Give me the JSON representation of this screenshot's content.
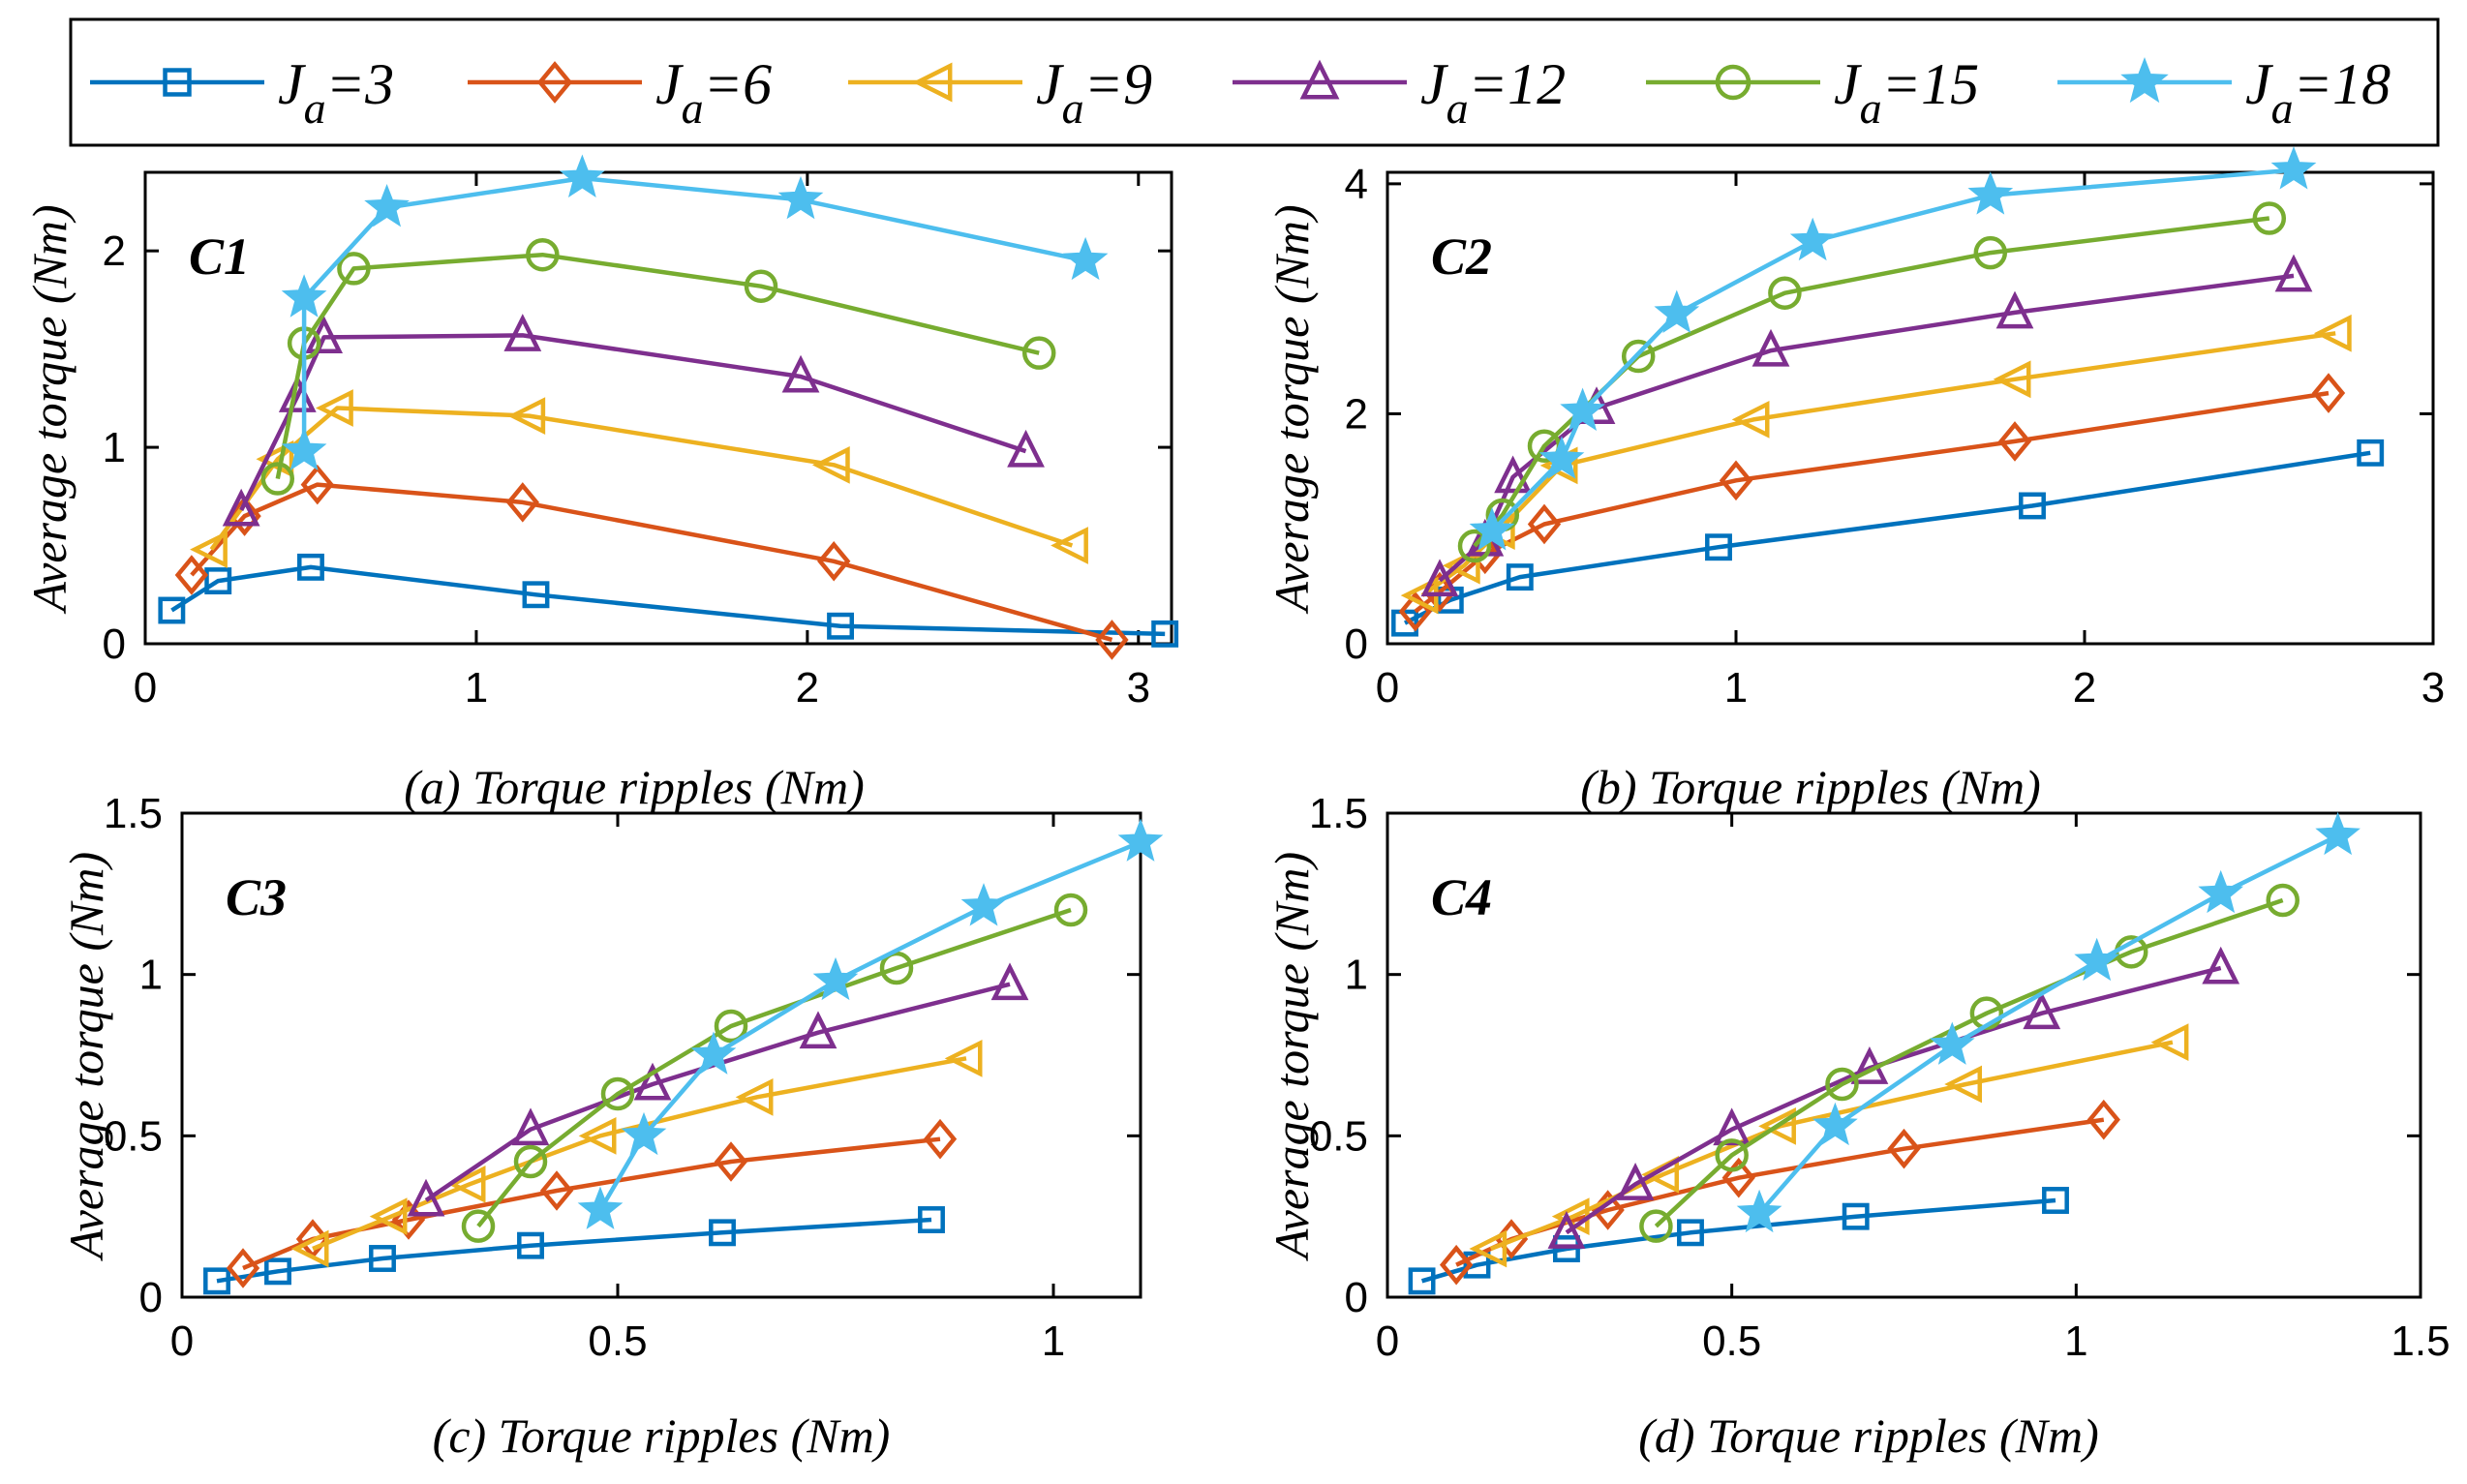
{
  "legend": [
    {
      "name": "J_a=3",
      "label_main": "J",
      "label_sub": "a",
      "label_value": "=3",
      "color": "#0072BD",
      "marker": "square"
    },
    {
      "name": "J_a=6",
      "label_main": "J",
      "label_sub": "a",
      "label_value": "=6",
      "color": "#D95319",
      "marker": "diamond"
    },
    {
      "name": "J_a=9",
      "label_main": "J",
      "label_sub": "a",
      "label_value": "=9",
      "color": "#EDB120",
      "marker": "triangle-left"
    },
    {
      "name": "J_a=12",
      "label_main": "J",
      "label_sub": "a",
      "label_value": "=12",
      "color": "#7E2F8E",
      "marker": "triangle-up"
    },
    {
      "name": "J_a=15",
      "label_main": "J",
      "label_sub": "a",
      "label_value": "=15",
      "color": "#77AC30",
      "marker": "circle"
    },
    {
      "name": "J_a=18",
      "label_main": "J",
      "label_sub": "a",
      "label_value": "=18",
      "color": "#4DBEEE",
      "marker": "star"
    }
  ],
  "chart_data": [
    {
      "type": "line",
      "panel": "a",
      "label": "C1",
      "xlabel": "(a) Torque ripples (Nm)",
      "ylabel": "Average torque (Nm)",
      "xlim": [
        0,
        3.1
      ],
      "ylim": [
        0,
        2.4
      ],
      "xticks": [
        0,
        1,
        2,
        3
      ],
      "yticks": [
        0,
        1,
        2
      ],
      "xtick_labels": [
        "0",
        "1",
        "2",
        "3"
      ],
      "ytick_labels": [
        "0",
        "1",
        "2"
      ],
      "series": [
        {
          "name": "J_a=3",
          "x": [
            0.08,
            0.22,
            0.5,
            1.18,
            2.1,
            3.08
          ],
          "y": [
            0.17,
            0.32,
            0.39,
            0.25,
            0.09,
            0.05
          ]
        },
        {
          "name": "J_a=6",
          "x": [
            0.14,
            0.3,
            0.52,
            1.14,
            2.08,
            2.92
          ],
          "y": [
            0.35,
            0.65,
            0.81,
            0.72,
            0.42,
            0.02
          ]
        },
        {
          "name": "J_a=9",
          "x": [
            0.2,
            0.4,
            0.58,
            1.16,
            2.08,
            2.8
          ],
          "y": [
            0.48,
            0.94,
            1.2,
            1.16,
            0.91,
            0.5
          ]
        },
        {
          "name": "J_a=12",
          "x": [
            0.29,
            0.46,
            0.54,
            1.14,
            1.98,
            2.66
          ],
          "y": [
            0.68,
            1.26,
            1.56,
            1.57,
            1.36,
            0.98
          ]
        },
        {
          "name": "J_a=15",
          "x": [
            0.4,
            0.48,
            0.63,
            1.2,
            1.86,
            2.7
          ],
          "y": [
            0.84,
            1.53,
            1.91,
            1.98,
            1.82,
            1.48
          ]
        },
        {
          "name": "J_a=18",
          "x": [
            0.48,
            0.48,
            0.73,
            1.32,
            1.98,
            2.84
          ],
          "y": [
            0.98,
            1.76,
            2.22,
            2.37,
            2.26,
            1.95
          ]
        }
      ]
    },
    {
      "type": "line",
      "panel": "b",
      "label": "C2",
      "xlabel": "(b) Torque ripples (Nm)",
      "ylabel": "Average torque (Nm)",
      "xlim": [
        0,
        3
      ],
      "ylim": [
        0,
        4.1
      ],
      "xticks": [
        0,
        1,
        2,
        3
      ],
      "yticks": [
        0,
        2,
        4
      ],
      "xtick_labels": [
        "0",
        "1",
        "2",
        "3"
      ],
      "ytick_labels": [
        "0",
        "2",
        "4"
      ],
      "series": [
        {
          "name": "J_a=3",
          "x": [
            0.05,
            0.18,
            0.38,
            0.95,
            1.85,
            2.82
          ],
          "y": [
            0.18,
            0.38,
            0.58,
            0.84,
            1.2,
            1.66
          ]
        },
        {
          "name": "J_a=6",
          "x": [
            0.08,
            0.15,
            0.28,
            0.45,
            1.0,
            1.8,
            2.7
          ],
          "y": [
            0.28,
            0.45,
            0.78,
            1.04,
            1.42,
            1.76,
            2.18
          ]
        },
        {
          "name": "J_a=9",
          "x": [
            0.1,
            0.22,
            0.32,
            0.5,
            1.05,
            1.8,
            2.72
          ],
          "y": [
            0.42,
            0.68,
            0.98,
            1.55,
            1.95,
            2.3,
            2.7
          ]
        },
        {
          "name": "J_a=12",
          "x": [
            0.15,
            0.28,
            0.36,
            0.6,
            1.1,
            1.8,
            2.6
          ],
          "y": [
            0.55,
            0.9,
            1.45,
            2.05,
            2.55,
            2.88,
            3.2
          ]
        },
        {
          "name": "J_a=15",
          "x": [
            0.25,
            0.33,
            0.45,
            0.72,
            1.14,
            1.73,
            2.53
          ],
          "y": [
            0.85,
            1.12,
            1.72,
            2.5,
            3.05,
            3.4,
            3.7
          ]
        },
        {
          "name": "J_a=18",
          "x": [
            0.3,
            0.5,
            0.56,
            0.83,
            1.22,
            1.73,
            2.6
          ],
          "y": [
            0.98,
            1.6,
            2.02,
            2.87,
            3.5,
            3.9,
            4.12
          ]
        }
      ]
    },
    {
      "type": "line",
      "panel": "c",
      "label": "C3",
      "xlabel": "(c) Torque ripples (Nm)",
      "ylabel": "Average torque (Nm)",
      "xlim": [
        0,
        1.1
      ],
      "ylim": [
        0,
        1.5
      ],
      "xticks": [
        0,
        0.5,
        1
      ],
      "yticks": [
        0,
        0.5,
        1,
        1.5
      ],
      "xtick_labels": [
        "0",
        "0.5",
        "1"
      ],
      "ytick_labels": [
        "0",
        "0.5",
        "1",
        "1.5"
      ],
      "series": [
        {
          "name": "J_a=3",
          "x": [
            0.04,
            0.11,
            0.23,
            0.4,
            0.62,
            0.86
          ],
          "y": [
            0.05,
            0.08,
            0.12,
            0.16,
            0.2,
            0.24
          ]
        },
        {
          "name": "J_a=6",
          "x": [
            0.07,
            0.15,
            0.26,
            0.43,
            0.63,
            0.87
          ],
          "y": [
            0.09,
            0.18,
            0.24,
            0.33,
            0.42,
            0.49
          ]
        },
        {
          "name": "J_a=9",
          "x": [
            0.15,
            0.24,
            0.33,
            0.48,
            0.66,
            0.9
          ],
          "y": [
            0.15,
            0.25,
            0.35,
            0.5,
            0.62,
            0.74
          ]
        },
        {
          "name": "J_a=12",
          "x": [
            0.28,
            0.4,
            0.54,
            0.73,
            0.95
          ],
          "y": [
            0.3,
            0.52,
            0.66,
            0.82,
            0.97
          ]
        },
        {
          "name": "J_a=15",
          "x": [
            0.34,
            0.4,
            0.5,
            0.63,
            0.82,
            1.02
          ],
          "y": [
            0.22,
            0.42,
            0.63,
            0.84,
            1.02,
            1.2
          ]
        },
        {
          "name": "J_a=18",
          "x": [
            0.48,
            0.53,
            0.61,
            0.75,
            0.92,
            1.1
          ],
          "y": [
            0.27,
            0.5,
            0.75,
            0.98,
            1.21,
            1.41
          ]
        }
      ]
    },
    {
      "type": "line",
      "panel": "d",
      "label": "C4",
      "xlabel": "(d) Torque ripples (Nm)",
      "ylabel": "Average torque (Nm)",
      "xlim": [
        0,
        1.5
      ],
      "ylim": [
        0,
        1.5
      ],
      "xticks": [
        0,
        0.5,
        1,
        1.5
      ],
      "yticks": [
        0,
        0.5,
        1,
        1.5
      ],
      "xtick_labels": [
        "0",
        "0.5",
        "1",
        "1.5"
      ],
      "ytick_labels": [
        "0",
        "0.5",
        "1",
        "1.5"
      ],
      "series": [
        {
          "name": "J_a=3",
          "x": [
            0.05,
            0.13,
            0.26,
            0.44,
            0.68,
            0.97
          ],
          "y": [
            0.05,
            0.1,
            0.15,
            0.2,
            0.25,
            0.3
          ]
        },
        {
          "name": "J_a=6",
          "x": [
            0.1,
            0.18,
            0.32,
            0.51,
            0.75,
            1.04
          ],
          "y": [
            0.1,
            0.18,
            0.27,
            0.37,
            0.46,
            0.55
          ]
        },
        {
          "name": "J_a=9",
          "x": [
            0.15,
            0.27,
            0.4,
            0.57,
            0.84,
            1.14
          ],
          "y": [
            0.15,
            0.25,
            0.38,
            0.53,
            0.66,
            0.79
          ]
        },
        {
          "name": "J_a=12",
          "x": [
            0.26,
            0.36,
            0.5,
            0.7,
            0.95,
            1.21
          ],
          "y": [
            0.2,
            0.35,
            0.52,
            0.71,
            0.88,
            1.02
          ]
        },
        {
          "name": "J_a=15",
          "x": [
            0.39,
            0.5,
            0.66,
            0.87,
            1.08,
            1.3
          ],
          "y": [
            0.22,
            0.44,
            0.66,
            0.88,
            1.07,
            1.23
          ]
        },
        {
          "name": "J_a=18",
          "x": [
            0.54,
            0.65,
            0.82,
            1.03,
            1.21,
            1.38
          ],
          "y": [
            0.26,
            0.53,
            0.78,
            1.04,
            1.25,
            1.43
          ]
        }
      ]
    }
  ]
}
